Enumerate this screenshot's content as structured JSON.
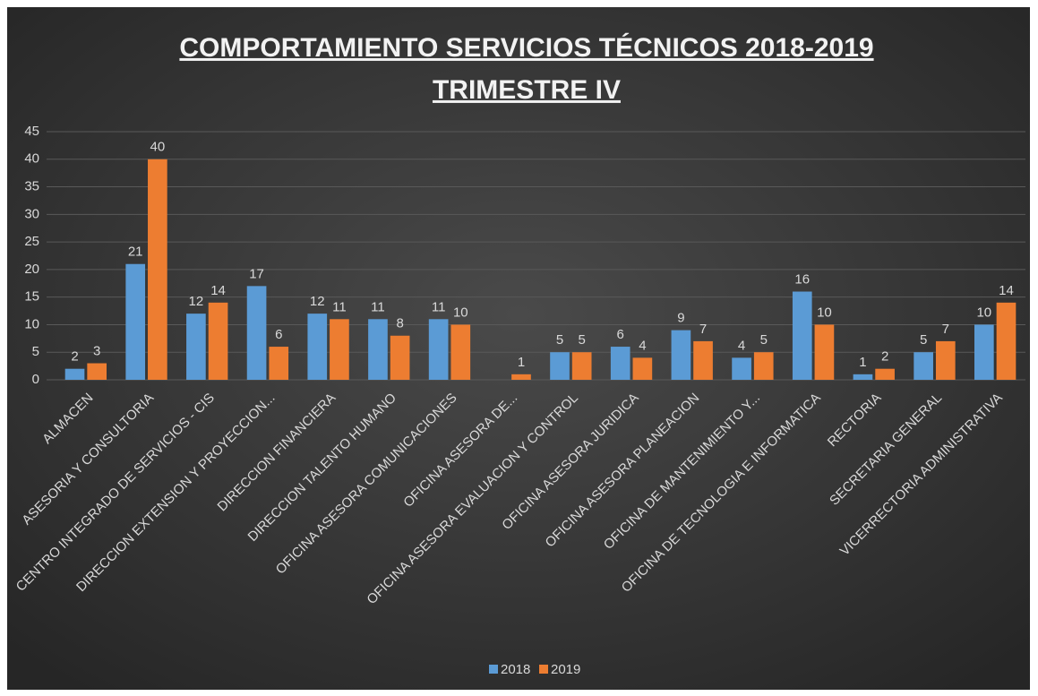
{
  "chart_data": {
    "type": "bar",
    "title": "COMPORTAMIENTO  SERVICIOS TÉCNICOS 2018-2019",
    "subtitle": "TRIMESTRE IV",
    "categories": [
      "ALMACEN",
      "ASESORIA Y CONSULTORIA",
      "CENTRO INTEGRADO DE SERVICIOS - CIS",
      "DIRECCION EXTENSION Y PROYECCION...",
      "DIRECCION FINANCIERA",
      "DIRECCION TALENTO HUMANO",
      "OFICINA ASESORA COMUNICACIONES",
      "OFICINA ASESORA DE...",
      "OFICINA ASESORA EVALUACION Y CONTROL",
      "OFICINA ASESORA JURIDICA",
      "OFICINA ASESORA PLANEACION",
      "OFICINA DE MANTENIMIENTO Y...",
      "OFICINA DE TECNOLOGIA E INFORMATICA",
      "RECTORIA",
      "SECRETARIA GENERAL",
      "VICERRECTORIA ADMINISTRATIVA"
    ],
    "series": [
      {
        "name": "2018",
        "color": "#5b9bd5",
        "values": [
          2,
          21,
          12,
          17,
          12,
          11,
          11,
          null,
          5,
          6,
          9,
          4,
          16,
          1,
          5,
          10
        ]
      },
      {
        "name": "2019",
        "color": "#ed7d31",
        "values": [
          3,
          40,
          14,
          6,
          11,
          8,
          10,
          1,
          5,
          4,
          7,
          5,
          10,
          2,
          7,
          14
        ]
      }
    ],
    "ylim": [
      0,
      45
    ],
    "yticks": [
      0,
      5,
      10,
      15,
      20,
      25,
      30,
      35,
      40,
      45
    ],
    "grid": true,
    "legend": "bottom"
  }
}
